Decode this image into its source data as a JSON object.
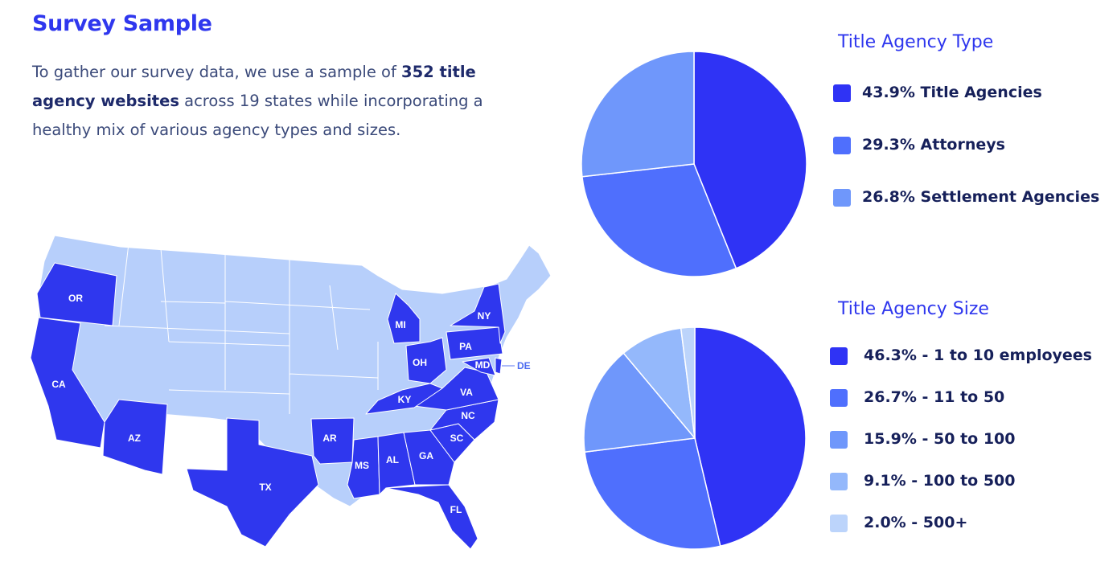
{
  "heading": "Survey Sample",
  "intro": {
    "part1": "To gather our survey data, we use a sample of ",
    "bold": "352 title agency websites",
    "part2": " across 19 states while incorporating a healthy mix of various agency types and sizes."
  },
  "map": {
    "highlight_color": "#2f37ee",
    "base_color": "#b7cffb",
    "states": [
      "OR",
      "CA",
      "AZ",
      "TX",
      "AR",
      "MS",
      "AL",
      "GA",
      "FL",
      "SC",
      "NC",
      "VA",
      "KY",
      "OH",
      "MI",
      "PA",
      "NY",
      "MD",
      "DE"
    ]
  },
  "chart_data": [
    {
      "type": "pie",
      "title": "Title Agency Type",
      "categories": [
        "Title Agencies",
        "Attorneys",
        "Settlement Agencies"
      ],
      "values": [
        43.9,
        29.3,
        26.8
      ],
      "labels": [
        "43.9% Title Agencies",
        "29.3% Attorneys",
        "26.8% Settlement Agencies"
      ],
      "colors": [
        "#2f33f5",
        "#4f6ffd",
        "#6f97fb"
      ]
    },
    {
      "type": "pie",
      "title": "Title Agency Size",
      "categories": [
        "1 to 10 employees",
        "11 to 50",
        "50 to 100",
        "100 to 500",
        "500+"
      ],
      "values": [
        46.3,
        26.7,
        15.9,
        9.1,
        2.0
      ],
      "labels": [
        "46.3% - 1 to 10 employees",
        "26.7% - 11 to 50",
        "15.9% - 50 to 100",
        "9.1% - 100 to 500",
        "2.0% - 500+"
      ],
      "colors": [
        "#2f33f5",
        "#4f6ffd",
        "#6f97fb",
        "#94b8fb",
        "#bcd4fb"
      ]
    }
  ]
}
